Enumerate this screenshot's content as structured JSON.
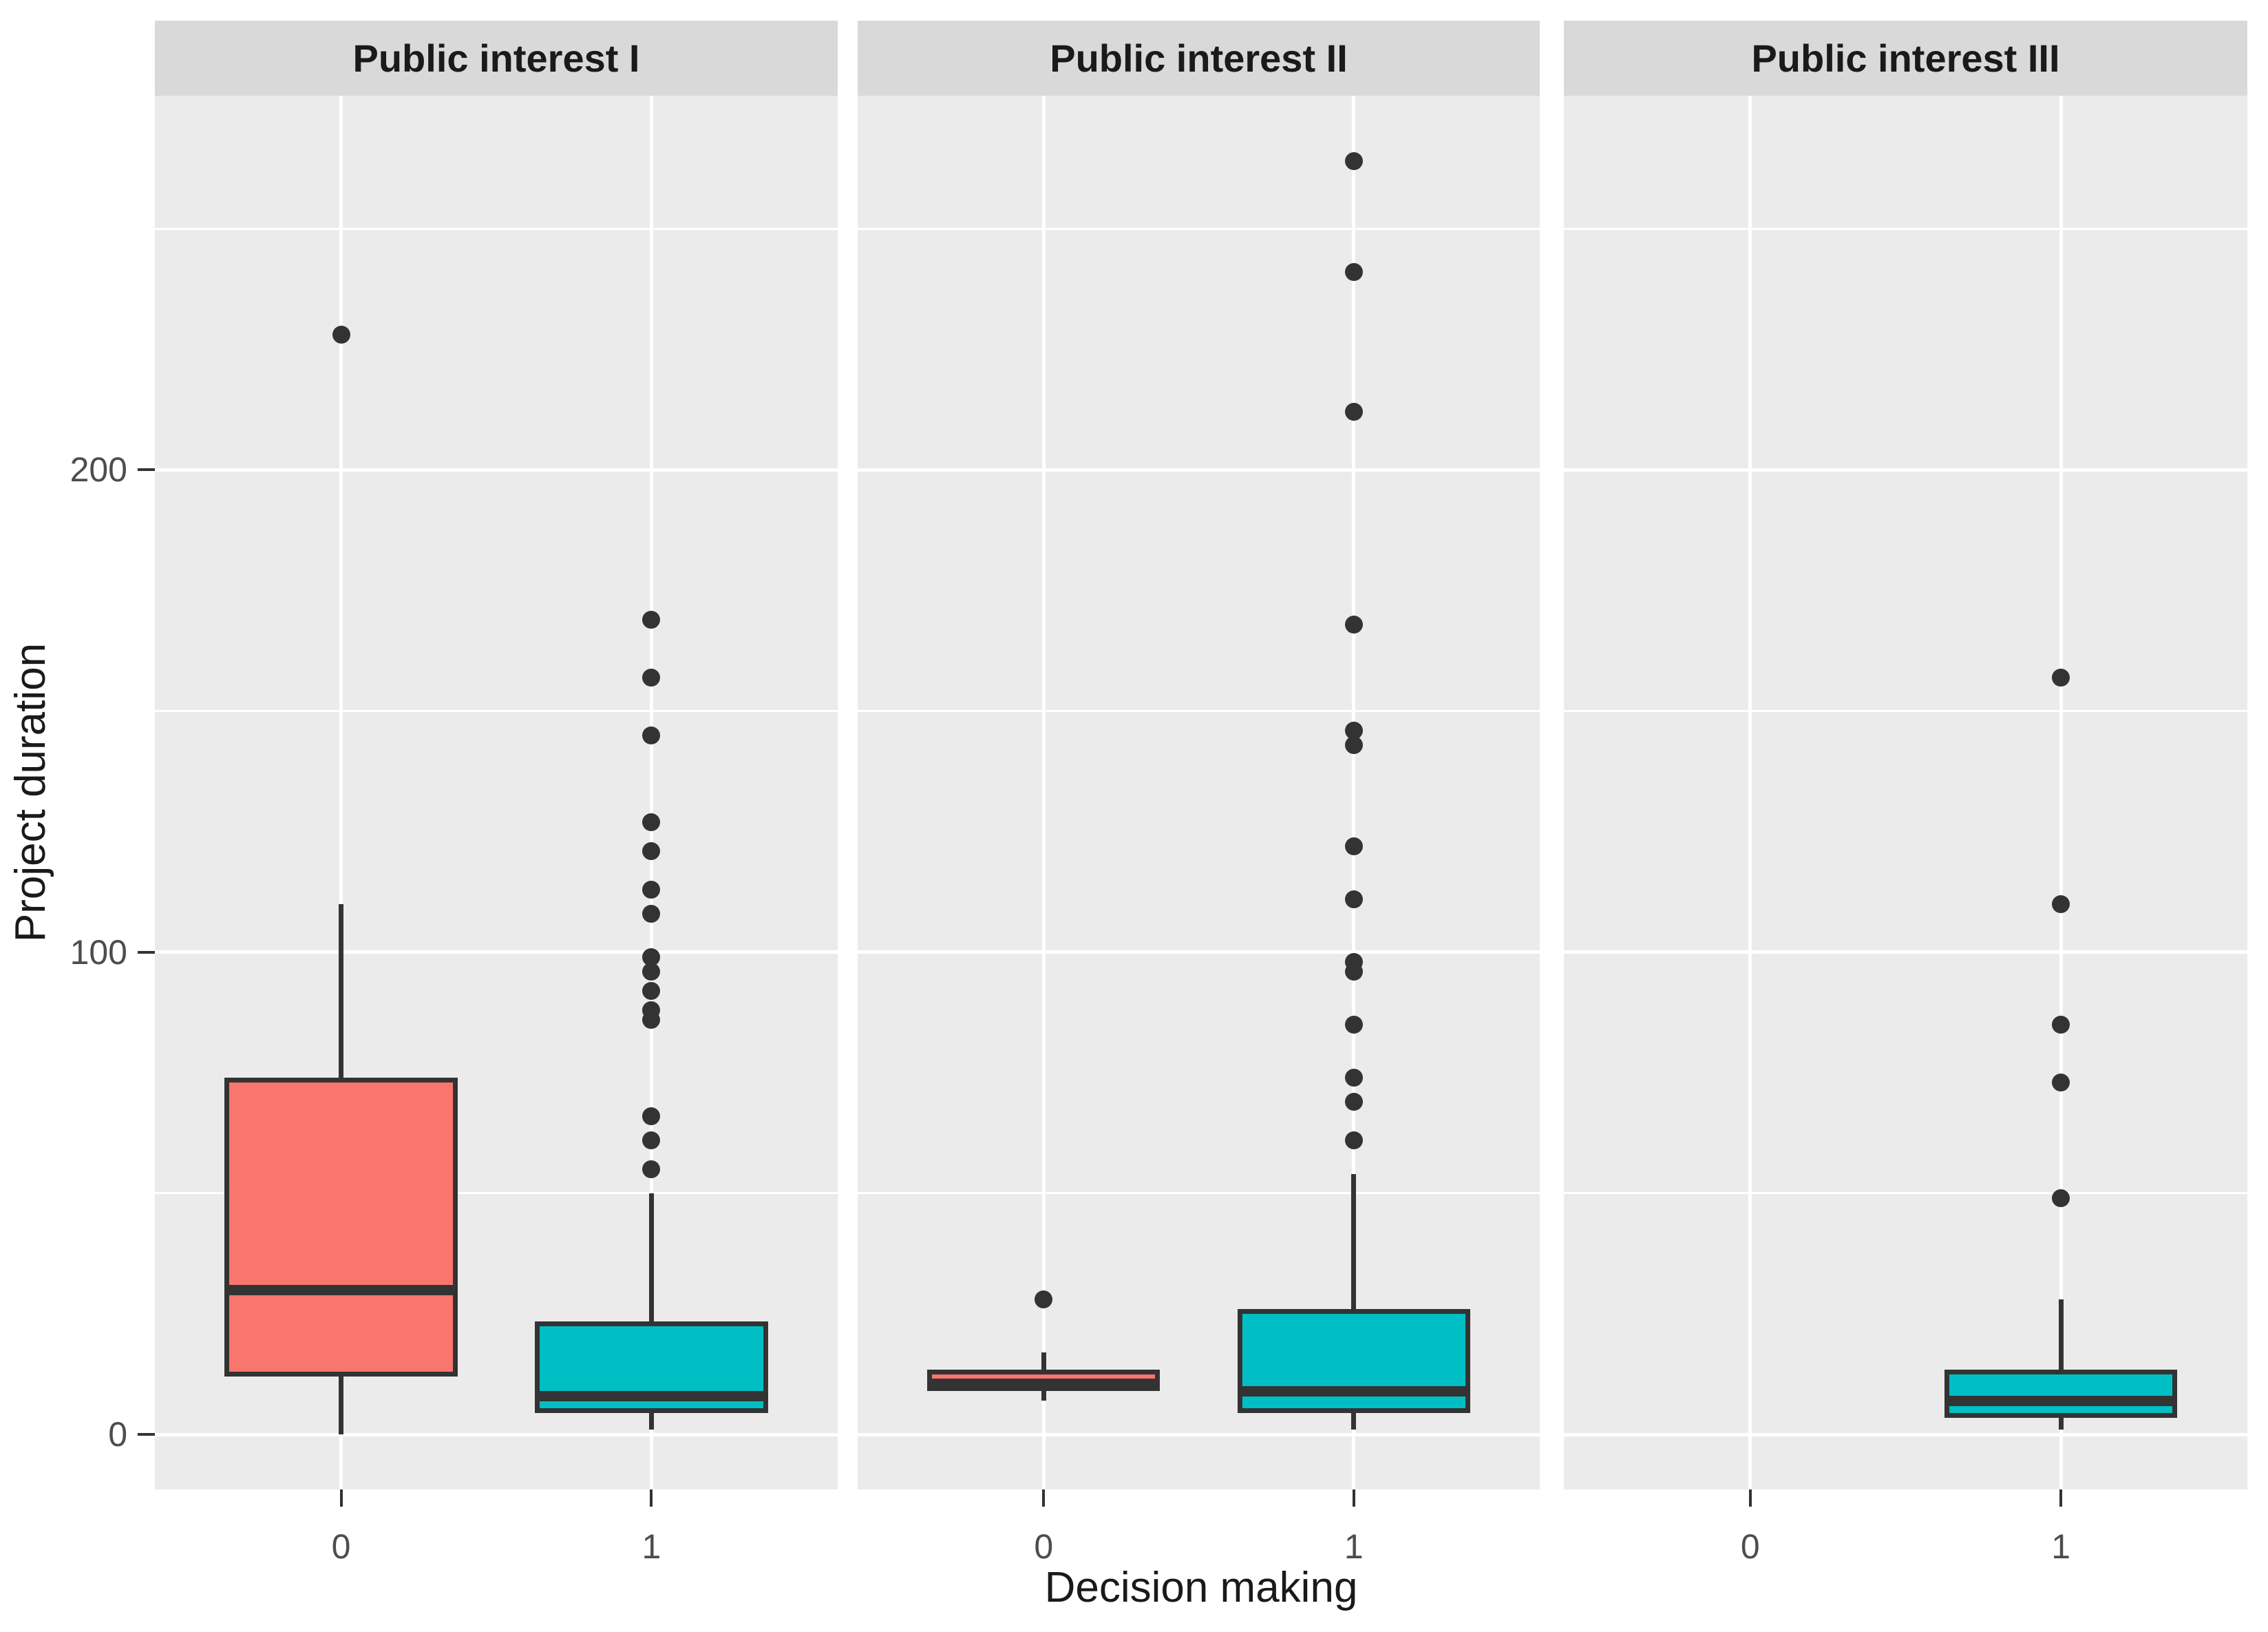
{
  "colors": {
    "red_fill": "#F8766D",
    "teal_fill": "#00BFC4",
    "box_stroke": "#333333",
    "panel_bg": "#EBEBEB",
    "strip_bg": "#D9D9D9",
    "gridline": "#FFFFFF",
    "tick_text": "#4D4D4D",
    "title_text": "#1A1A1A"
  },
  "chart_data": {
    "type": "boxplot",
    "title": "",
    "xlabel": "Decision making",
    "ylabel": "Project duration",
    "categories": [
      "0",
      "1"
    ],
    "y_ticks": [
      0,
      100,
      200
    ],
    "y_minor_ticks": [
      50,
      150,
      250
    ],
    "ylim": [
      -11.4,
      277.6
    ],
    "grid": "on",
    "legend": "none",
    "facets": [
      {
        "label": "Public interest I",
        "boxes": [
          {
            "category": "0",
            "color": "#F8766D",
            "whisker_low": 0,
            "q1": 12,
            "median": 30,
            "q3": 74,
            "whisker_high": 110,
            "outliers": [
              228
            ]
          },
          {
            "category": "1",
            "color": "#00BFC4",
            "whisker_low": 1,
            "q1": 4.5,
            "median": 8,
            "q3": 23.5,
            "whisker_high": 50,
            "outliers": [
              169,
              157,
              145,
              127,
              121,
              113,
              108,
              99,
              96,
              92,
              88,
              86,
              66,
              61,
              55
            ]
          }
        ]
      },
      {
        "label": "Public interest II",
        "boxes": [
          {
            "category": "0",
            "color": "#F8766D",
            "whisker_low": 7,
            "q1": 9,
            "median": 10.5,
            "q3": 13.5,
            "whisker_high": 17,
            "outliers": [
              28
            ]
          },
          {
            "category": "1",
            "color": "#00BFC4",
            "whisker_low": 1,
            "q1": 4.5,
            "median": 9,
            "q3": 26,
            "whisker_high": 54,
            "outliers": [
              264,
              241,
              212,
              168,
              146,
              143,
              122,
              111,
              98,
              96,
              85,
              74,
              69,
              61
            ]
          }
        ]
      },
      {
        "label": "Public interest III",
        "boxes": [
          null,
          {
            "category": "1",
            "color": "#00BFC4",
            "whisker_low": 1,
            "q1": 3.5,
            "median": 7,
            "q3": 13.5,
            "whisker_high": 28,
            "outliers": [
              157,
              110,
              85,
              73,
              49
            ]
          }
        ]
      }
    ]
  }
}
